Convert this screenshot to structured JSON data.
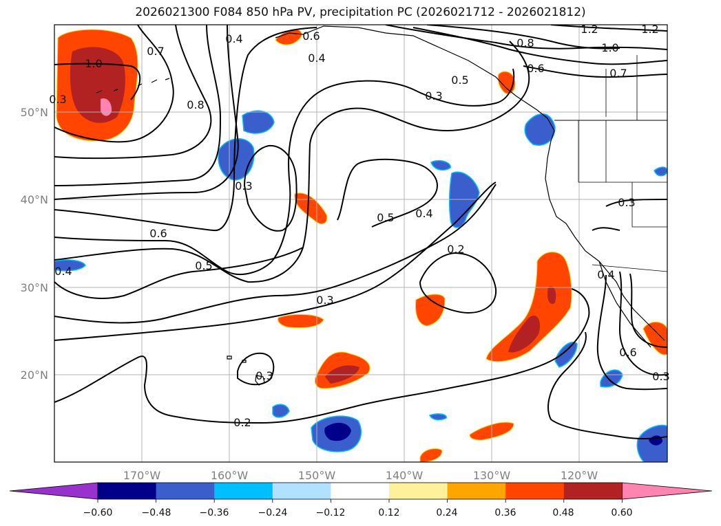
{
  "title": "2026021300 F084 850 hPa PV, precipitation PC (2026021712 - 2026021812)",
  "lon_labels": [
    "170°W",
    "160°W",
    "150°W",
    "140°W",
    "130°W",
    "120°W"
  ],
  "lat_labels": [
    "50°N",
    "40°N",
    "30°N",
    "20°N"
  ],
  "colorbar": {
    "colors": [
      "#9932cc",
      "#00008b",
      "#3a5fcd",
      "#00bfff",
      "#b0e2ff",
      "#ffffff",
      "#fff09a",
      "#ffa500",
      "#ff4500",
      "#b22222",
      "#ff85b0"
    ],
    "tick_labels": [
      "−0.60",
      "−0.48",
      "−0.36",
      "−0.24",
      "−0.12",
      "0.12",
      "0.24",
      "0.36",
      "0.48",
      "0.60"
    ]
  },
  "contour_labels": [
    "1.0",
    "0.7",
    "0.8",
    "0.4",
    "0.6",
    "0.4",
    "0.3",
    "0.5",
    "0.8",
    "0.6",
    "1.0",
    "1.2",
    "1.2",
    "0.7",
    "0.3",
    "0.5",
    "0.4",
    "0.6",
    "0.5",
    "0.2",
    "0.3",
    "0.3",
    "0.2",
    "0.3",
    "0.4",
    "0.4",
    "0.6",
    "0.3",
    "0.3"
  ]
}
